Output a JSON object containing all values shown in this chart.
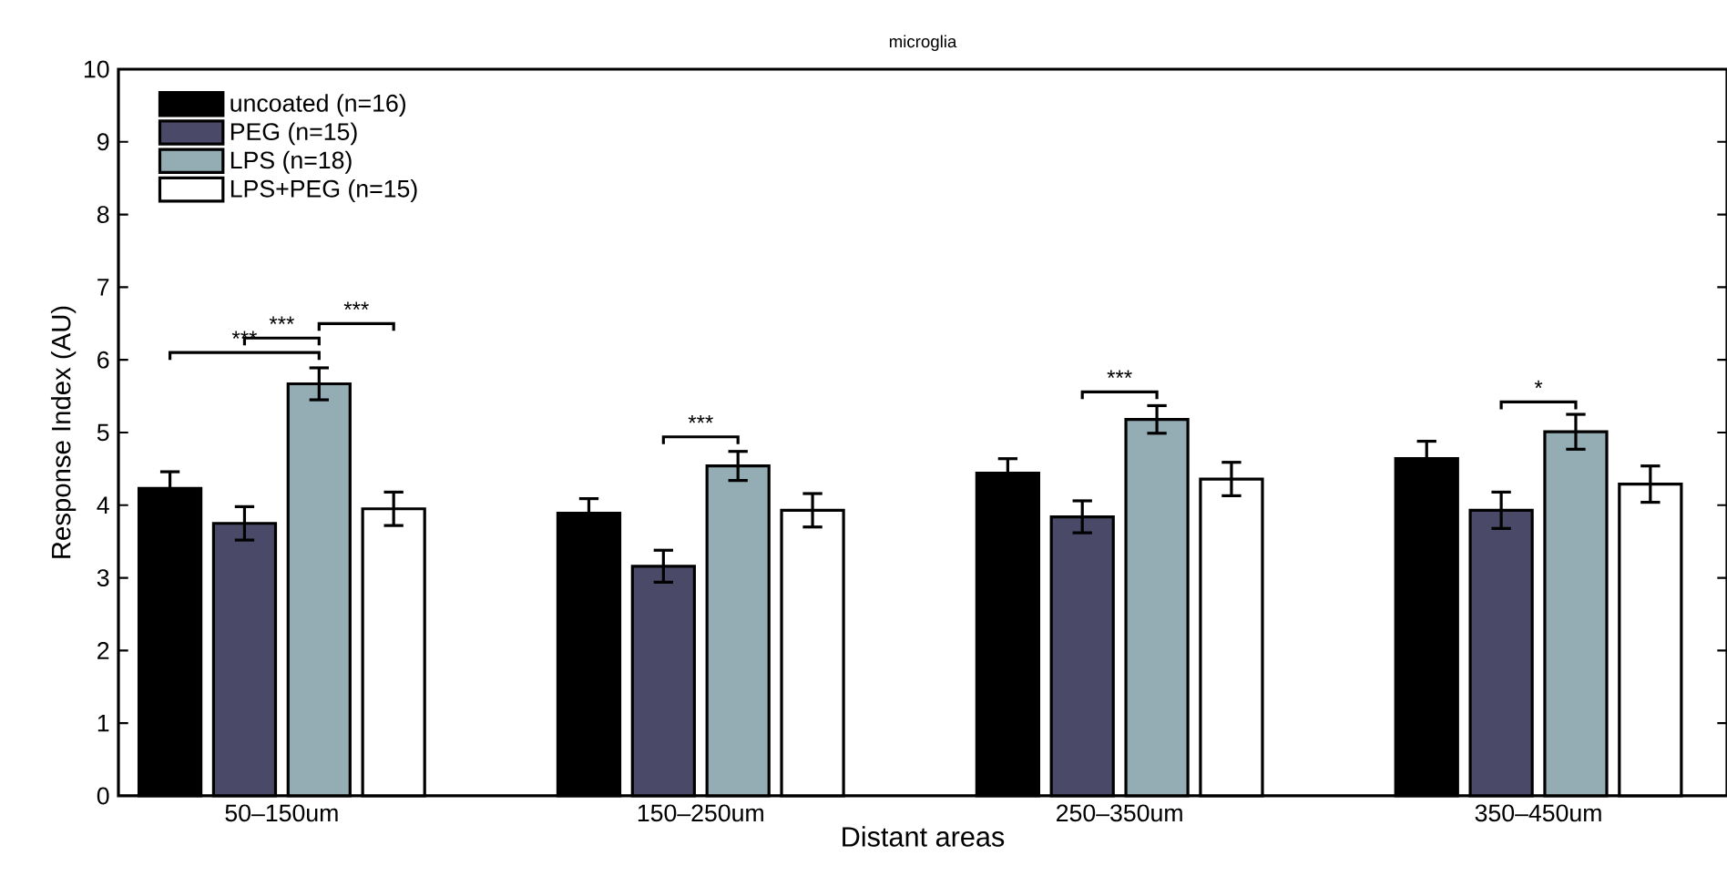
{
  "chart_data": {
    "type": "bar",
    "title": "microglia",
    "xlabel": "Distant areas",
    "ylabel": "Response Index (AU)",
    "categories": [
      "50–150um",
      "150–250um",
      "250–350um",
      "350–450um"
    ],
    "series": [
      {
        "name": "uncoated (n=16)",
        "color": "#000000",
        "values": [
          4.23,
          3.89,
          4.44,
          4.64
        ],
        "errors": [
          0.23,
          0.2,
          0.2,
          0.24
        ]
      },
      {
        "name": "PEG (n=15)",
        "color": "#4a4a68",
        "values": [
          3.75,
          3.16,
          3.84,
          3.93
        ],
        "errors": [
          0.23,
          0.22,
          0.22,
          0.25
        ]
      },
      {
        "name": "LPS (n=18)",
        "color": "#94adb5",
        "values": [
          5.67,
          4.54,
          5.18,
          5.01
        ],
        "errors": [
          0.22,
          0.2,
          0.19,
          0.24
        ]
      },
      {
        "name": "LPS+PEG (n=15)",
        "color": "#ffffff",
        "values": [
          3.95,
          3.93,
          4.36,
          4.29
        ],
        "errors": [
          0.23,
          0.23,
          0.23,
          0.25
        ]
      }
    ],
    "annotations": [
      "***",
      "***",
      "***",
      "***",
      "***",
      "*"
    ],
    "ylim": [
      0,
      10
    ],
    "yticks": [
      0,
      1,
      2,
      3,
      4,
      5,
      6,
      7,
      8,
      9,
      10
    ],
    "grid": false,
    "legend": "top left"
  }
}
